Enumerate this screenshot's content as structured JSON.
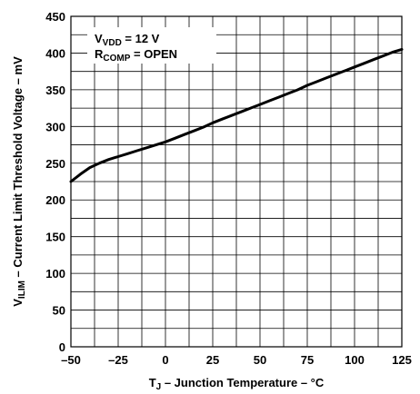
{
  "chart_data": {
    "type": "line",
    "x_axis": {
      "label_main": "T",
      "label_sub": "J",
      "label_rest": " – Junction Temperature – °C",
      "min": -50,
      "max": 125,
      "ticks": [
        -50,
        -25,
        0,
        25,
        50,
        75,
        100,
        125
      ],
      "tick_labels": [
        "–50",
        "–25",
        "0",
        "25",
        "50",
        "75",
        "100",
        "125"
      ]
    },
    "y_axis": {
      "label_main": "V",
      "label_sub": "ILIM",
      "label_rest": " – Current Limit Threshold Voltage – mV",
      "min": 0,
      "max": 450,
      "ticks": [
        0,
        50,
        100,
        150,
        200,
        250,
        300,
        350,
        400,
        450
      ],
      "tick_labels": [
        "0",
        "50",
        "100",
        "150",
        "200",
        "250",
        "300",
        "350",
        "400",
        "450"
      ]
    },
    "grid": true,
    "annotations": [
      {
        "main": "V",
        "sub": "VDD",
        "rest": " = 12 V"
      },
      {
        "main": "R",
        "sub": "COMP",
        "rest": " = OPEN"
      }
    ],
    "series": [
      {
        "x": [
          -50,
          -45,
          -40,
          -35,
          -30,
          -25,
          -20,
          -15,
          -10,
          -5,
          0,
          5,
          10,
          15,
          20,
          25,
          30,
          35,
          40,
          45,
          50,
          55,
          60,
          65,
          70,
          75,
          80,
          85,
          90,
          95,
          100,
          105,
          110,
          115,
          120,
          125
        ],
        "y": [
          225,
          235,
          244,
          250,
          255,
          259,
          263,
          267,
          271,
          275,
          279,
          284,
          289,
          294,
          299,
          305,
          310,
          315,
          320,
          325,
          330,
          335,
          340,
          345,
          350,
          356,
          361,
          366,
          371,
          376,
          381,
          386,
          391,
          396,
          401,
          405
        ]
      }
    ]
  }
}
